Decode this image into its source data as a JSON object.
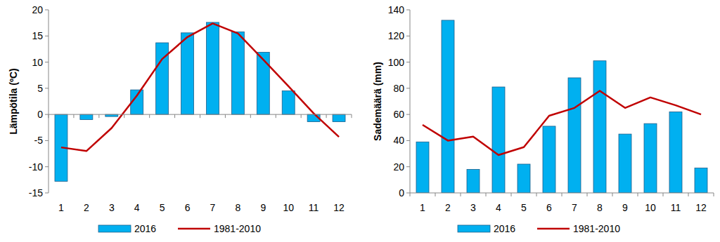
{
  "chart_data": [
    {
      "type": "bar",
      "ylabel": "Lämpötila (ºC)",
      "categories": [
        "1",
        "2",
        "3",
        "4",
        "5",
        "6",
        "7",
        "8",
        "9",
        "10",
        "11",
        "12"
      ],
      "series": [
        {
          "name": "2016",
          "type": "bar",
          "color": "#00b0f0",
          "values": [
            -12.8,
            -1.0,
            -0.4,
            4.7,
            13.7,
            15.6,
            17.6,
            15.8,
            11.9,
            4.5,
            -1.4,
            -1.4
          ]
        },
        {
          "name": "1981-2010",
          "type": "line",
          "color": "#c00000",
          "values": [
            -6.3,
            -7.0,
            -2.6,
            3.6,
            10.6,
            14.8,
            17.4,
            15.5,
            10.5,
            5.4,
            0.2,
            -4.3
          ]
        }
      ],
      "ylim": [
        -15,
        20
      ],
      "yticks": [
        -15,
        -10,
        -5,
        0,
        5,
        10,
        15,
        20
      ],
      "grid": false,
      "legend": "bottom"
    },
    {
      "type": "bar",
      "ylabel": "Sademäärä (mm)",
      "categories": [
        "1",
        "2",
        "3",
        "4",
        "5",
        "6",
        "7",
        "8",
        "9",
        "10",
        "11",
        "12"
      ],
      "series": [
        {
          "name": "2016",
          "type": "bar",
          "color": "#00b0f0",
          "values": [
            39,
            132,
            18,
            81,
            22,
            51,
            88,
            101,
            45,
            53,
            62,
            19
          ]
        },
        {
          "name": "1981-2010",
          "type": "line",
          "color": "#c00000",
          "values": [
            52,
            40,
            43,
            29,
            35,
            59,
            65,
            78,
            65,
            73,
            67,
            60
          ]
        }
      ],
      "ylim": [
        0,
        140
      ],
      "yticks": [
        0,
        20,
        40,
        60,
        80,
        100,
        120,
        140
      ],
      "grid": false,
      "legend": "bottom"
    }
  ]
}
